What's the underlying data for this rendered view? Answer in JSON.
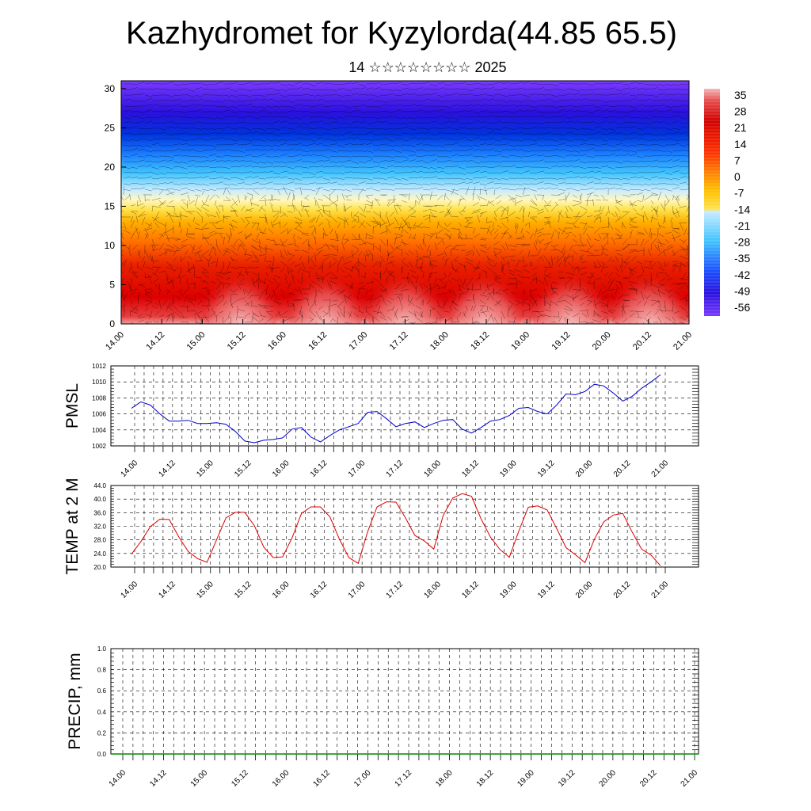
{
  "header": {
    "title": "Kazhydromet for Kyzylorda(44.85 65.5)",
    "subtitle": "14 ☆☆☆☆☆☆☆☆ 2025"
  },
  "chart_data": [
    {
      "type": "heatmap",
      "name": "cross-section",
      "title": "",
      "xlabel": "",
      "ylabel": "",
      "x_ticks": [
        "14.00",
        "14.12",
        "15.00",
        "15.12",
        "16.00",
        "16.12",
        "17.00",
        "17.12",
        "18.00",
        "18.12",
        "19.00",
        "19.12",
        "20.00",
        "20.12",
        "21.00"
      ],
      "y_ticks": [
        "0",
        "5",
        "10",
        "15",
        "20",
        "25",
        "30"
      ],
      "ylim": [
        0,
        31
      ],
      "colorbar": {
        "labels": [
          "35",
          "28",
          "21",
          "14",
          "7",
          "0",
          "-7",
          "-14",
          "-21",
          "-28",
          "-35",
          "-42",
          "-49",
          "-56"
        ],
        "range": [
          -60,
          39
        ],
        "stops": [
          "#f4b8b8",
          "#e63b3b",
          "#d10000",
          "#ff6a00",
          "#ffaa00",
          "#ffe24a",
          "#fff7b0",
          "#c8ecff",
          "#40c4ff",
          "#1a7cff",
          "#0033dd",
          "#2a00cc",
          "#7a3bff"
        ]
      },
      "vectors": "wind barbs/streamlines overlay (black)",
      "colors": {
        "overlay": "#000000"
      }
    },
    {
      "type": "line",
      "name": "pmsl",
      "ylabel": "PMSL",
      "color": "#0000cc",
      "x_ticks": [
        "14.00",
        "14.12",
        "15.00",
        "15.12",
        "16.00",
        "16.12",
        "17.00",
        "17.12",
        "18.00",
        "18.12",
        "19.00",
        "19.12",
        "20.00",
        "20.12",
        "21.00"
      ],
      "y_ticks": [
        "1002",
        "1004",
        "1006",
        "1008",
        "1010",
        "1012"
      ],
      "ylim": [
        1002,
        1012
      ],
      "x": [
        0,
        3,
        6,
        9,
        12,
        15,
        18,
        21,
        24,
        27,
        30,
        33,
        36,
        39,
        42,
        45,
        48,
        51,
        54,
        57,
        60,
        63,
        66,
        69,
        72,
        75,
        78,
        81,
        84,
        87,
        90,
        93,
        96,
        99,
        102,
        105,
        108,
        111,
        114,
        117,
        120,
        123,
        126,
        129,
        132,
        135,
        138,
        141,
        144,
        147,
        150,
        153,
        156,
        159,
        162,
        165,
        168
      ],
      "values": [
        1006.7,
        1007.5,
        1007.1,
        1006.0,
        1005.1,
        1005.1,
        1005.2,
        1004.8,
        1004.8,
        1004.9,
        1004.7,
        1003.8,
        1002.6,
        1002.4,
        1002.7,
        1002.8,
        1003.0,
        1004.1,
        1004.3,
        1003.1,
        1002.5,
        1003.3,
        1004.0,
        1004.4,
        1004.8,
        1006.2,
        1006.3,
        1005.4,
        1004.4,
        1004.8,
        1005.0,
        1004.3,
        1004.8,
        1005.2,
        1005.3,
        1004.1,
        1003.6,
        1004.3,
        1005.1,
        1005.3,
        1005.8,
        1006.7,
        1006.8,
        1006.3,
        1006.0,
        1007.1,
        1008.5,
        1008.4,
        1008.8,
        1009.7,
        1009.5,
        1008.6,
        1007.6,
        1008.2,
        1009.2,
        1010.0,
        1010.9
      ]
    },
    {
      "type": "line",
      "name": "temp2m",
      "ylabel": "TEMP at 2 M",
      "color": "#dd0000",
      "x_ticks": [
        "14.00",
        "14.12",
        "15.00",
        "15.12",
        "16.00",
        "16.12",
        "17.00",
        "17.12",
        "18.00",
        "18.12",
        "19.00",
        "19.12",
        "20.00",
        "20.12",
        "21.00"
      ],
      "y_ticks": [
        "20.0",
        "24.0",
        "28.0",
        "32.0",
        "36.0",
        "40.0",
        "44.0"
      ],
      "ylim": [
        20,
        44
      ],
      "x": [
        0,
        3,
        6,
        9,
        12,
        15,
        18,
        21,
        24,
        27,
        30,
        33,
        36,
        39,
        42,
        45,
        48,
        51,
        54,
        57,
        60,
        63,
        66,
        69,
        72,
        75,
        78,
        81,
        84,
        87,
        90,
        93,
        96,
        99,
        102,
        105,
        108,
        111,
        114,
        117,
        120,
        123,
        126,
        129,
        132,
        135,
        138,
        141,
        144,
        147,
        150,
        153,
        156,
        159,
        162,
        165,
        168
      ],
      "values": [
        23.8,
        27.5,
        31.9,
        34.1,
        34.0,
        28.9,
        24.6,
        22.5,
        21.4,
        28.0,
        34.5,
        36.1,
        36.1,
        32.2,
        25.9,
        22.8,
        23.0,
        28.6,
        35.8,
        37.7,
        37.7,
        34.8,
        28.3,
        22.8,
        21.1,
        30.4,
        37.7,
        39.2,
        39.1,
        34.5,
        29.3,
        27.7,
        25.3,
        35.2,
        40.3,
        41.6,
        40.8,
        34.2,
        28.8,
        25.2,
        22.9,
        30.6,
        37.6,
        38.0,
        36.8,
        31.4,
        25.7,
        23.6,
        21.3,
        28.2,
        33.3,
        35.3,
        35.8,
        30.3,
        25.3,
        23.5,
        20.4
      ]
    },
    {
      "type": "line",
      "name": "precip",
      "ylabel": "PRECIP, mm",
      "color": "#008800",
      "x_ticks": [
        "14.00",
        "14.12",
        "15.00",
        "15.12",
        "16.00",
        "16.12",
        "17.00",
        "17.12",
        "18.00",
        "18.12",
        "19.00",
        "19.12",
        "20.00",
        "20.12",
        "21.00"
      ],
      "y_ticks": [
        "0.0",
        "0.2",
        "0.4",
        "0.6",
        "0.8",
        "1.0"
      ],
      "ylim": [
        0,
        1
      ],
      "values": [
        0,
        0,
        0,
        0,
        0,
        0,
        0,
        0,
        0,
        0,
        0,
        0,
        0,
        0,
        0,
        0,
        0,
        0,
        0,
        0,
        0,
        0,
        0,
        0,
        0,
        0,
        0,
        0,
        0,
        0,
        0,
        0,
        0,
        0,
        0,
        0,
        0,
        0,
        0,
        0,
        0,
        0,
        0,
        0,
        0,
        0,
        0,
        0,
        0,
        0,
        0,
        0,
        0,
        0,
        0,
        0,
        0
      ]
    }
  ]
}
